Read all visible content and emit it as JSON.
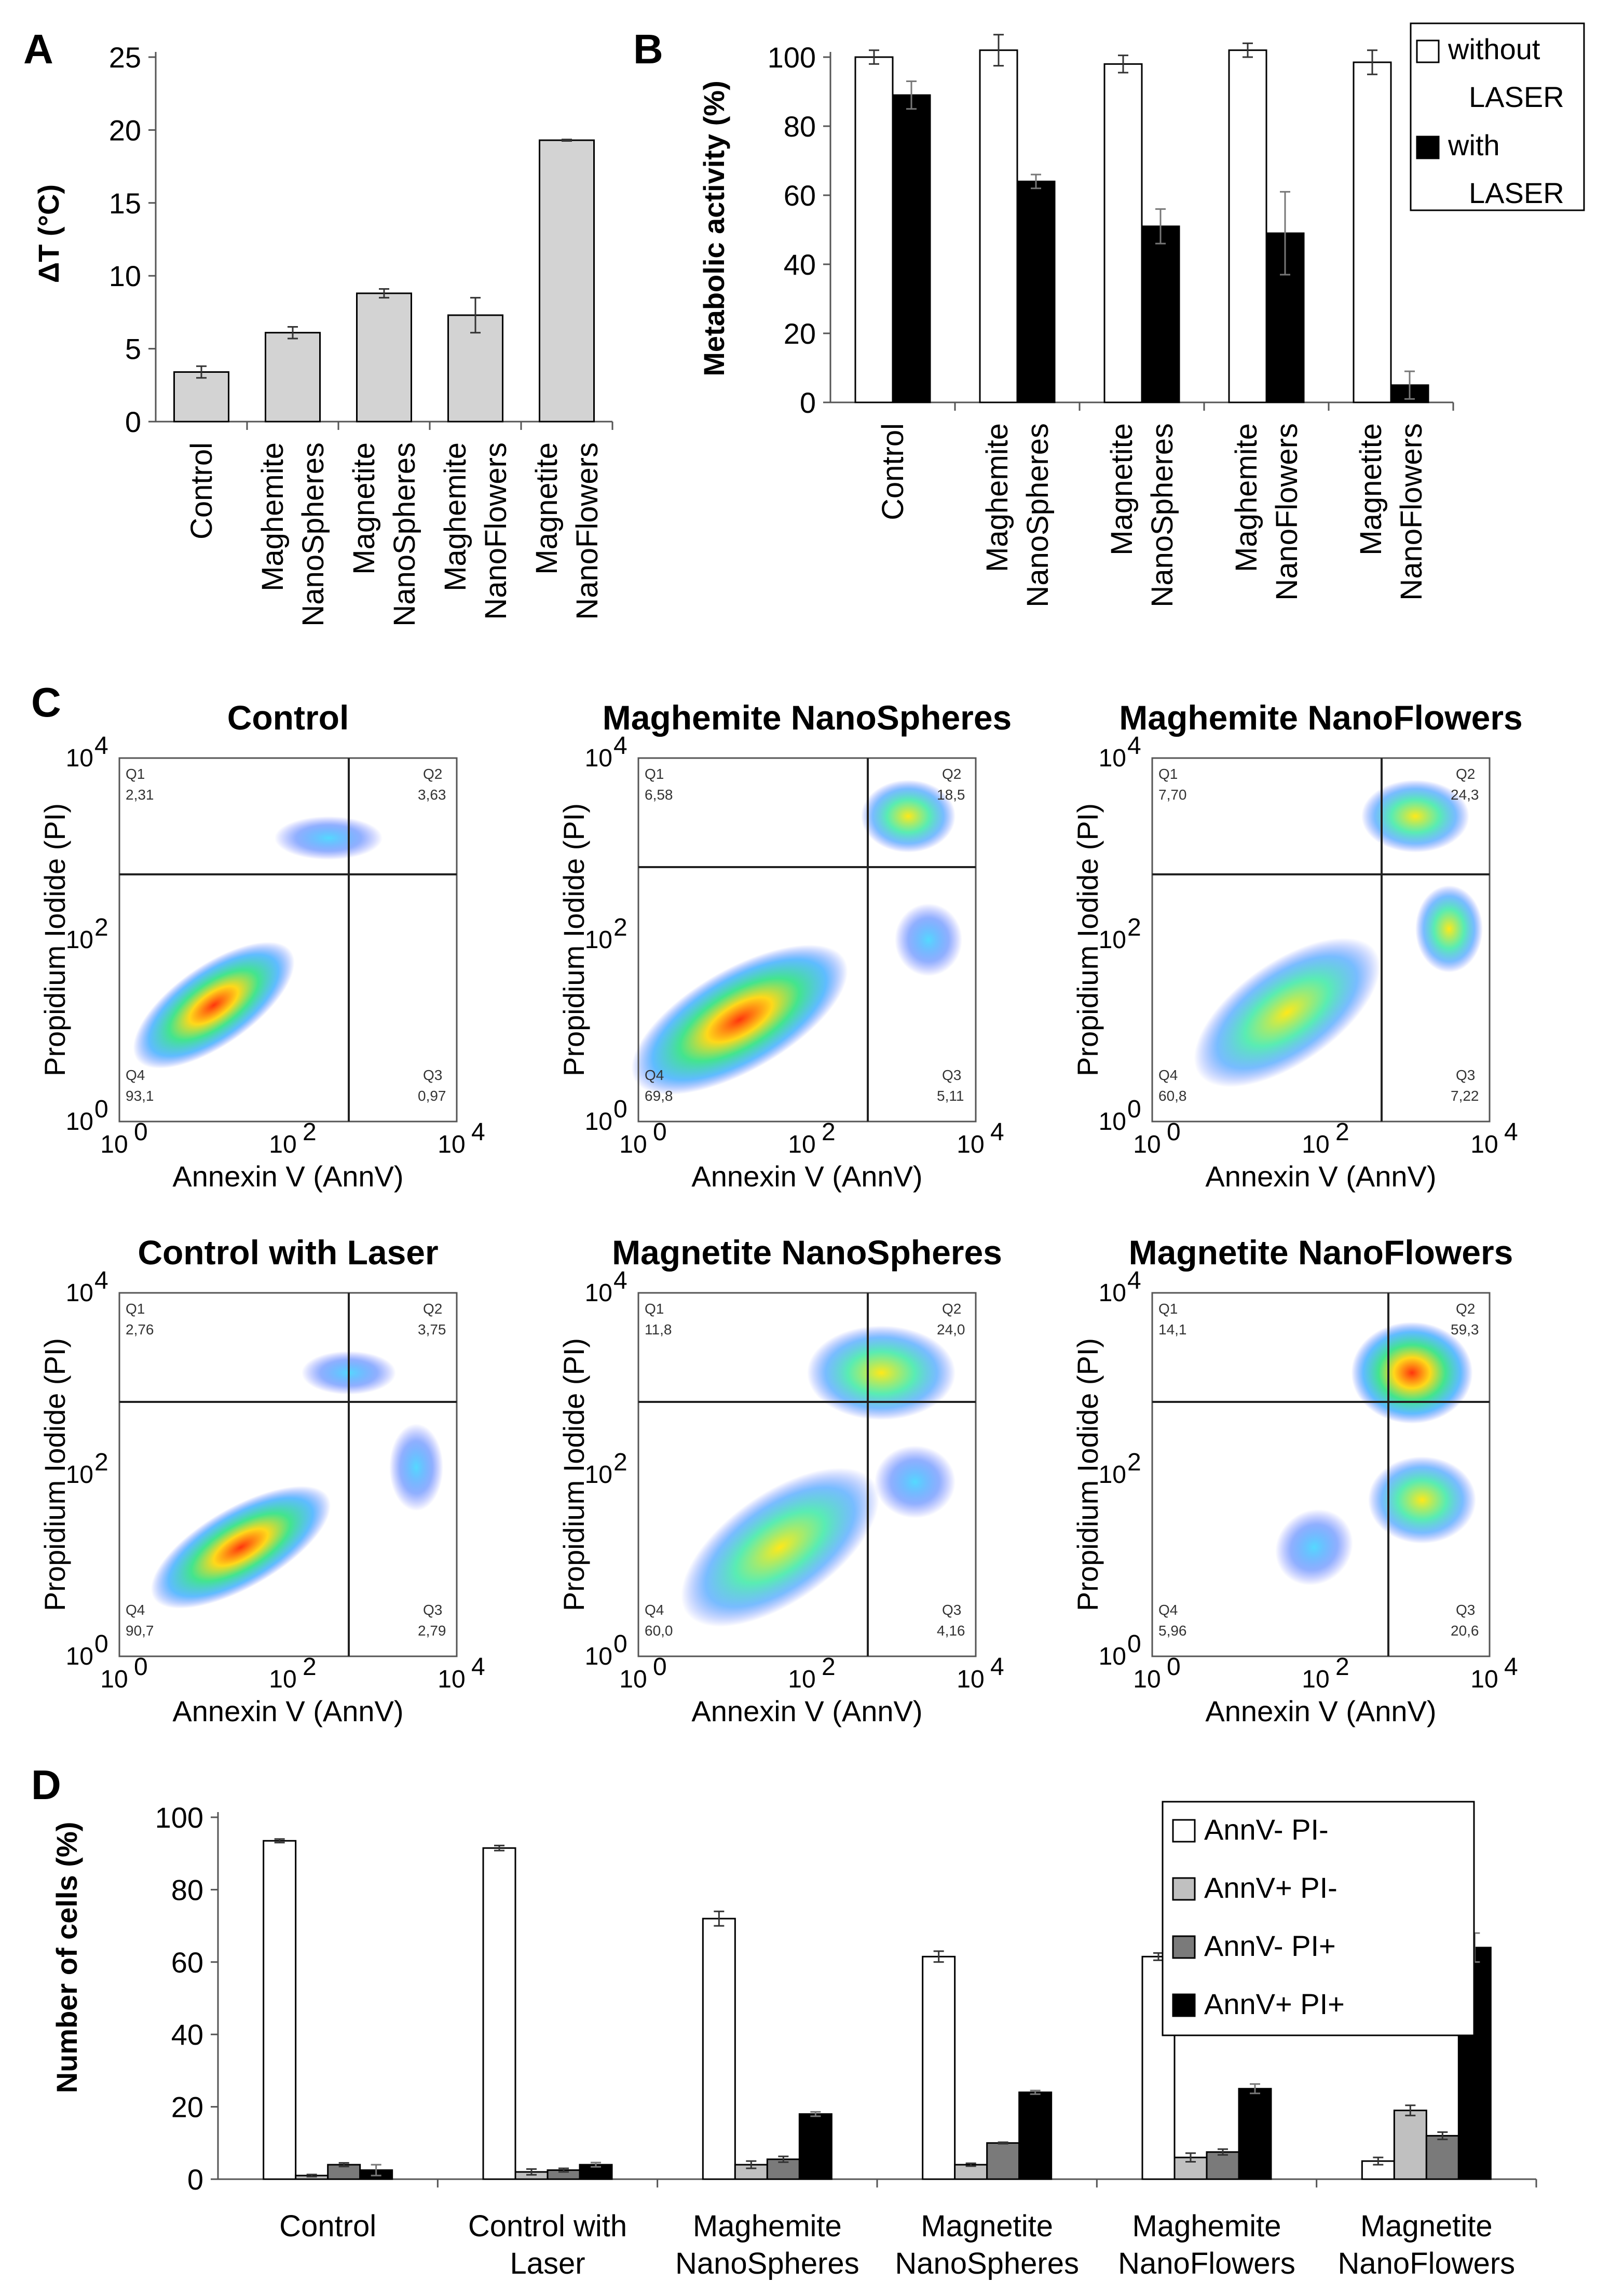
{
  "panels": {
    "A": "A",
    "B": "B",
    "C": "C",
    "D": "D"
  },
  "chart_data": [
    {
      "id": "A",
      "type": "bar",
      "ylabel": "ΔT (°C)",
      "ylim": [
        0,
        25
      ],
      "yticks": [
        0,
        5,
        10,
        15,
        20,
        25
      ],
      "categories": [
        [
          "Control"
        ],
        [
          "Maghemite",
          "NanoSpheres"
        ],
        [
          "Magnetite",
          "NanoSpheres"
        ],
        [
          "Maghemite",
          "NanoFlowers"
        ],
        [
          "Magnetite",
          "NanoFlowers"
        ]
      ],
      "values": [
        3.4,
        6.1,
        8.8,
        7.3,
        19.3
      ],
      "errors": [
        0.4,
        0.4,
        0.3,
        1.2,
        0.05
      ],
      "color": "#d3d3d3"
    },
    {
      "id": "B",
      "type": "bar",
      "ylabel": "Metabolic activity (%)",
      "ylim": [
        0,
        100
      ],
      "yticks": [
        0,
        20,
        40,
        60,
        80,
        100
      ],
      "categories": [
        [
          "Control"
        ],
        [
          "Maghemite",
          "NanoSpheres"
        ],
        [
          "Magnetite",
          "NanoSpheres"
        ],
        [
          "Maghemite",
          "NanoFlowers"
        ],
        [
          "Magnetite",
          "NanoFlowers"
        ]
      ],
      "series": [
        {
          "name": [
            "without",
            "LASER"
          ],
          "color": "#ffffff",
          "values": [
            100,
            102,
            98,
            102,
            98.5
          ],
          "errors": [
            2,
            4.5,
            2.5,
            2,
            3.5
          ]
        },
        {
          "name": [
            "with",
            "LASER"
          ],
          "color": "#000000",
          "values": [
            89,
            64,
            51,
            49,
            5
          ],
          "errors": [
            4,
            2,
            5,
            12,
            4
          ]
        }
      ]
    },
    {
      "id": "C",
      "type": "scatter",
      "xlabel": "Annexin V (AnnV)",
      "ylabel": "Propidium Iodide (PI)",
      "scale": "log",
      "ticks": [
        "10",
        "10",
        "10"
      ],
      "tick_exponents": [
        "0",
        "2",
        "4"
      ],
      "plots": [
        {
          "title": "Control",
          "q1": "Q1",
          "q2": "Q2",
          "q3": "Q3",
          "q4": "Q4",
          "v1": "2,31",
          "v2": "3,63",
          "v3": "0,97",
          "v4": "93,1"
        },
        {
          "title": "Maghemite NanoSpheres",
          "q1": "Q1",
          "q2": "Q2",
          "q3": "Q3",
          "q4": "Q4",
          "v1": "6,58",
          "v2": "18,5",
          "v3": "5,11",
          "v4": "69,8"
        },
        {
          "title": "Maghemite NanoFlowers",
          "q1": "Q1",
          "q2": "Q2",
          "q3": "Q3",
          "q4": "Q4",
          "v1": "7,70",
          "v2": "24,3",
          "v3": "7,22",
          "v4": "60,8"
        },
        {
          "title": "Control with Laser",
          "q1": "Q1",
          "q2": "Q2",
          "q3": "Q3",
          "q4": "Q4",
          "v1": "2,76",
          "v2": "3,75",
          "v3": "2,79",
          "v4": "90,7"
        },
        {
          "title": "Magnetite NanoSpheres",
          "q1": "Q1",
          "q2": "Q2",
          "q3": "Q3",
          "q4": "Q4",
          "v1": "11,8",
          "v2": "24,0",
          "v3": "4,16",
          "v4": "60,0"
        },
        {
          "title": "Magnetite NanoFlowers",
          "q1": "Q1",
          "q2": "Q2",
          "q3": "Q3",
          "q4": "Q4",
          "v1": "14,1",
          "v2": "59,3",
          "v3": "20,6",
          "v4": "5,96"
        }
      ]
    },
    {
      "id": "D",
      "type": "bar",
      "ylabel": "Number of cells (%)",
      "ylim": [
        0,
        100
      ],
      "yticks": [
        0,
        20,
        40,
        60,
        80,
        100
      ],
      "categories": [
        [
          "Control"
        ],
        [
          "Control with",
          "Laser"
        ],
        [
          "Maghemite",
          "NanoSpheres"
        ],
        [
          "Magnetite",
          "NanoSpheres"
        ],
        [
          "Maghemite",
          "NanoFlowers"
        ],
        [
          "Magnetite",
          "NanoFlowers"
        ]
      ],
      "series": [
        {
          "name": "AnnV- PI-",
          "color": "#ffffff",
          "values": [
            93.5,
            91.5,
            72,
            61.5,
            61.5,
            5
          ],
          "errors": [
            0.5,
            0.7,
            2,
            1.5,
            1,
            1
          ]
        },
        {
          "name": "AnnV+ PI-",
          "color": "#c0c0c0",
          "values": [
            1,
            2,
            4,
            4,
            6,
            19
          ],
          "errors": [
            0.3,
            0.8,
            1,
            0.4,
            1.2,
            1.4
          ]
        },
        {
          "name": "AnnV- PI+",
          "color": "#7a7a7a",
          "values": [
            4,
            2.5,
            5.5,
            10,
            7.5,
            12
          ],
          "errors": [
            0.5,
            0.5,
            0.8,
            0.2,
            0.8,
            1
          ]
        },
        {
          "name": "AnnV+ PI+",
          "color": "#000000",
          "values": [
            2.5,
            4,
            18,
            24,
            25,
            64
          ],
          "errors": [
            1.5,
            0.6,
            0.6,
            0.5,
            1.3,
            4
          ]
        }
      ]
    }
  ]
}
